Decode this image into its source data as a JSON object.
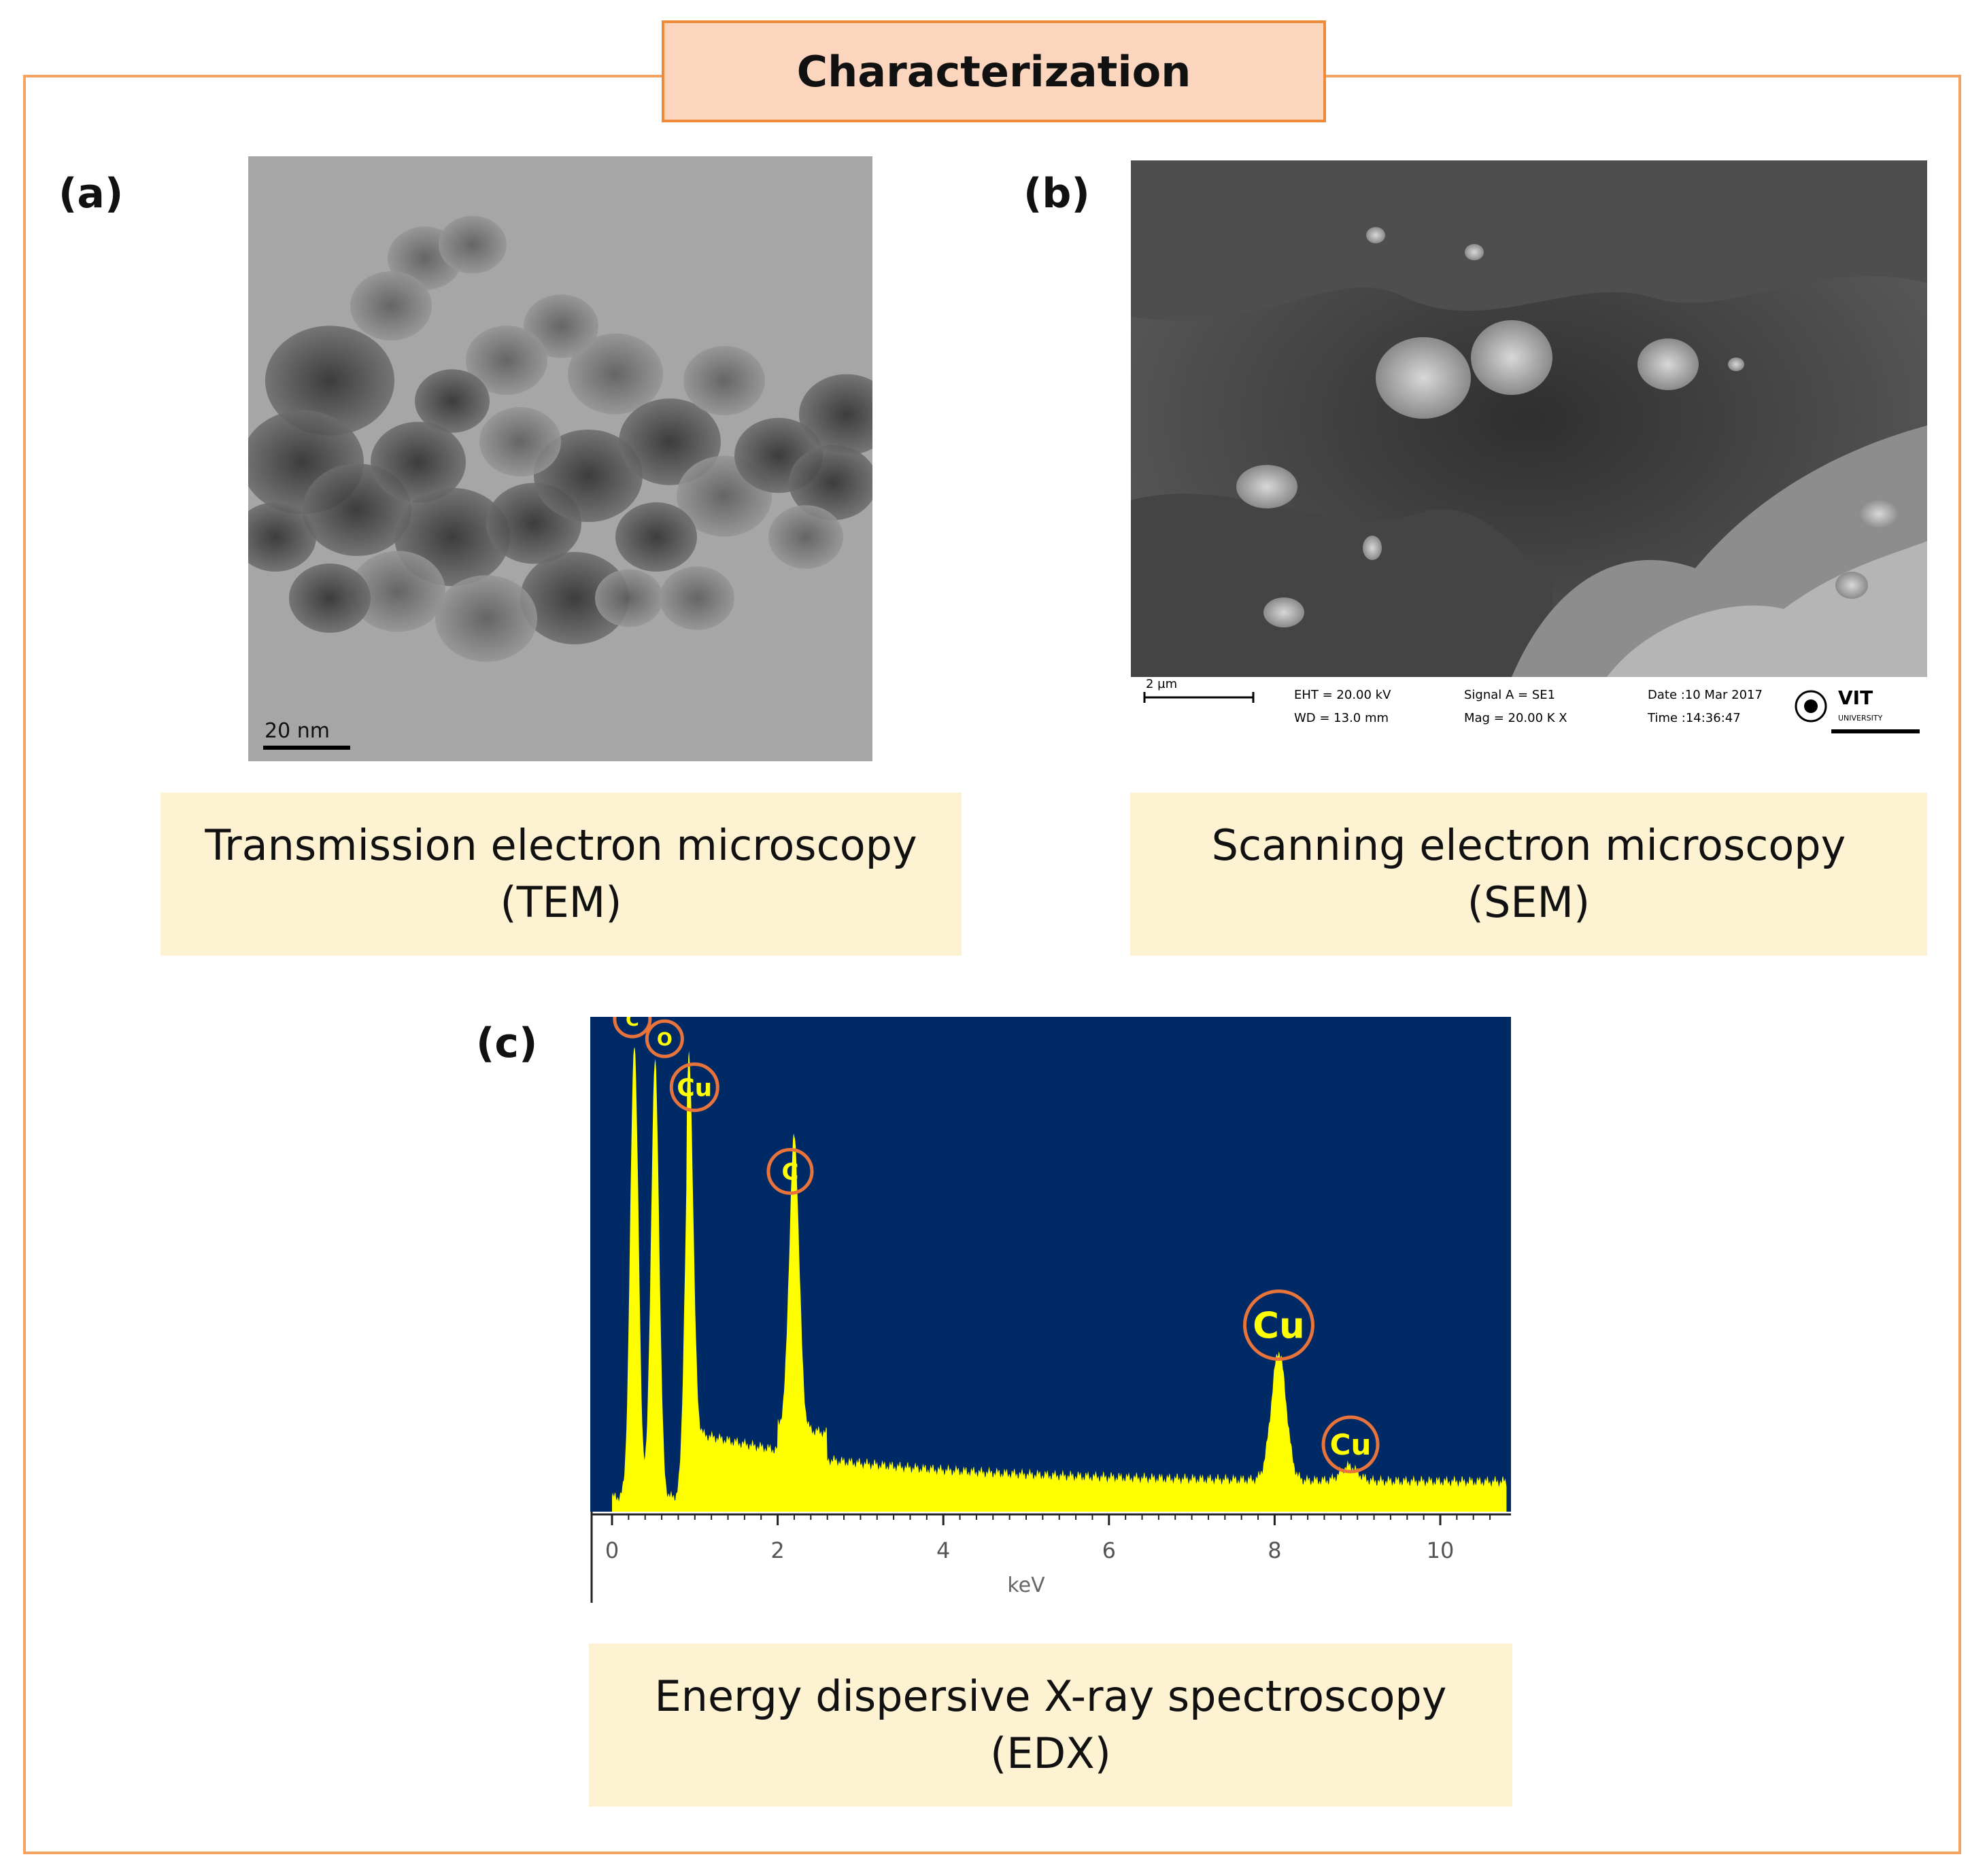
{
  "title": "Characterization",
  "panels": [
    {
      "label": "(a)",
      "caption_line1": "Transmission electron microscopy",
      "caption_line2": "(TEM)",
      "scale_bar": "20 nm"
    },
    {
      "label": "(b)",
      "caption_line1": "Scanning electron microscopy",
      "caption_line2": "(SEM)",
      "info": {
        "scale": "2 µm",
        "eht": "EHT = 20.00 kV",
        "wd": "WD = 13.0 mm",
        "signal": "Signal A = SE1",
        "mag": "Mag =  20.00 K X",
        "date": "Date :10 Mar 2017",
        "time": "Time :14:36:47",
        "logo": "VIT",
        "logo_sub": "UNIVERSITY"
      }
    },
    {
      "label": "(c)",
      "caption_line1": "Energy dispersive X-ray spectroscopy",
      "caption_line2": "(EDX)"
    }
  ],
  "chart_data": {
    "type": "line",
    "xlabel": "keV",
    "xlim": [
      0,
      10.8
    ],
    "ylim": [
      0,
      100
    ],
    "x_ticks": [
      "0",
      "2",
      "4",
      "6",
      "8",
      "10"
    ],
    "peaks": [
      {
        "element": "C",
        "x": 0.27,
        "y": 96
      },
      {
        "element": "O",
        "x": 0.52,
        "y": 92
      },
      {
        "element": "Cu",
        "x": 0.93,
        "y": 80
      },
      {
        "element": "C",
        "x": 2.2,
        "y": 63
      },
      {
        "element": "Cu",
        "x": 8.05,
        "y": 30
      },
      {
        "element": "Cu",
        "x": 8.9,
        "y": 7
      }
    ],
    "colors": {
      "background": "#002a66",
      "spectrum": "#ffff00",
      "circle": "#e8743b"
    }
  }
}
